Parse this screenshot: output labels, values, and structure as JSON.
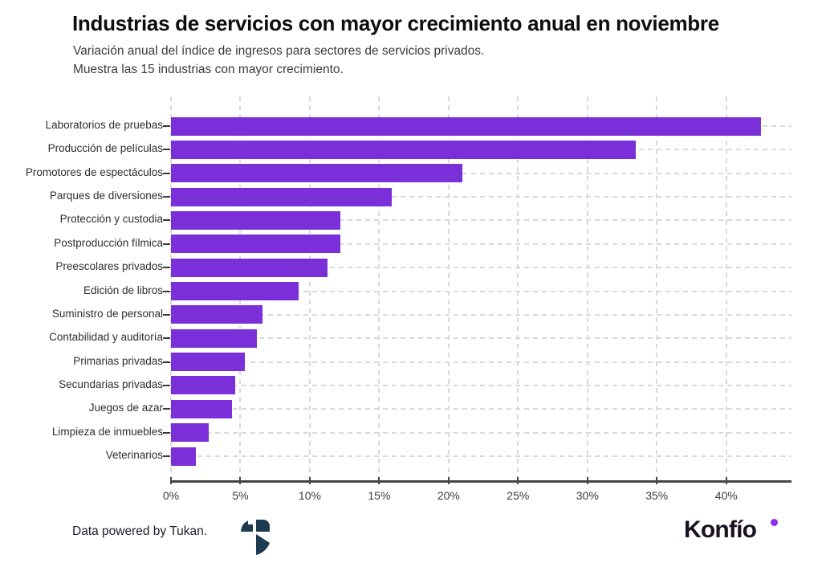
{
  "header": {
    "title": "Industrias de servicios con mayor crecimiento anual en noviembre",
    "subtitle_line1": "Variación anual del índice de ingresos para sectores de servicios privados.",
    "subtitle_line2": "Muestra las 15 industrias con mayor crecimiento."
  },
  "chart_data": {
    "type": "bar",
    "orientation": "horizontal",
    "title": "Industrias de servicios con mayor crecimiento anual en noviembre",
    "subtitle": "Variación anual del índice de ingresos para sectores de servicios privados. Muestra las 15 industrias con mayor crecimiento.",
    "categories": [
      "Laboratorios de pruebas",
      "Producción de películas",
      "Promotores de espectáculos",
      "Parques de diversiones",
      "Protección y custodia",
      "Postproducción fílmica",
      "Preescolares privados",
      "Edición de libros",
      "Suministro de personal",
      "Contabilidad y auditoría",
      "Primarias privadas",
      "Secundarias privadas",
      "Juegos de azar",
      "Limpieza de inmuebles",
      "Veterinarios"
    ],
    "values": [
      42.5,
      33.5,
      21.0,
      15.9,
      12.2,
      12.2,
      11.3,
      9.2,
      6.6,
      6.2,
      5.3,
      4.6,
      4.4,
      2.7,
      1.8
    ],
    "unit": "%",
    "xlabel": "",
    "ylabel": "",
    "x_ticks": [
      "0%",
      "5%",
      "10%",
      "15%",
      "20%",
      "25%",
      "30%",
      "35%",
      "40%"
    ],
    "x_tick_values": [
      0,
      5,
      10,
      15,
      20,
      25,
      30,
      35,
      40
    ],
    "xlim": [
      0,
      44.7
    ],
    "grid": "dashed",
    "legend": "none",
    "bar_color": "#7A2FD8",
    "gridline_color": "#d9d9d9",
    "axis_color": "#454545"
  },
  "footer": {
    "credit": "Data powered by Tukan.",
    "tukan_logo_icon": "tukan-bird-logo",
    "brand": "Konfío",
    "brand_color": "#18121f",
    "brand_dot_color": "#8D2EF4"
  }
}
